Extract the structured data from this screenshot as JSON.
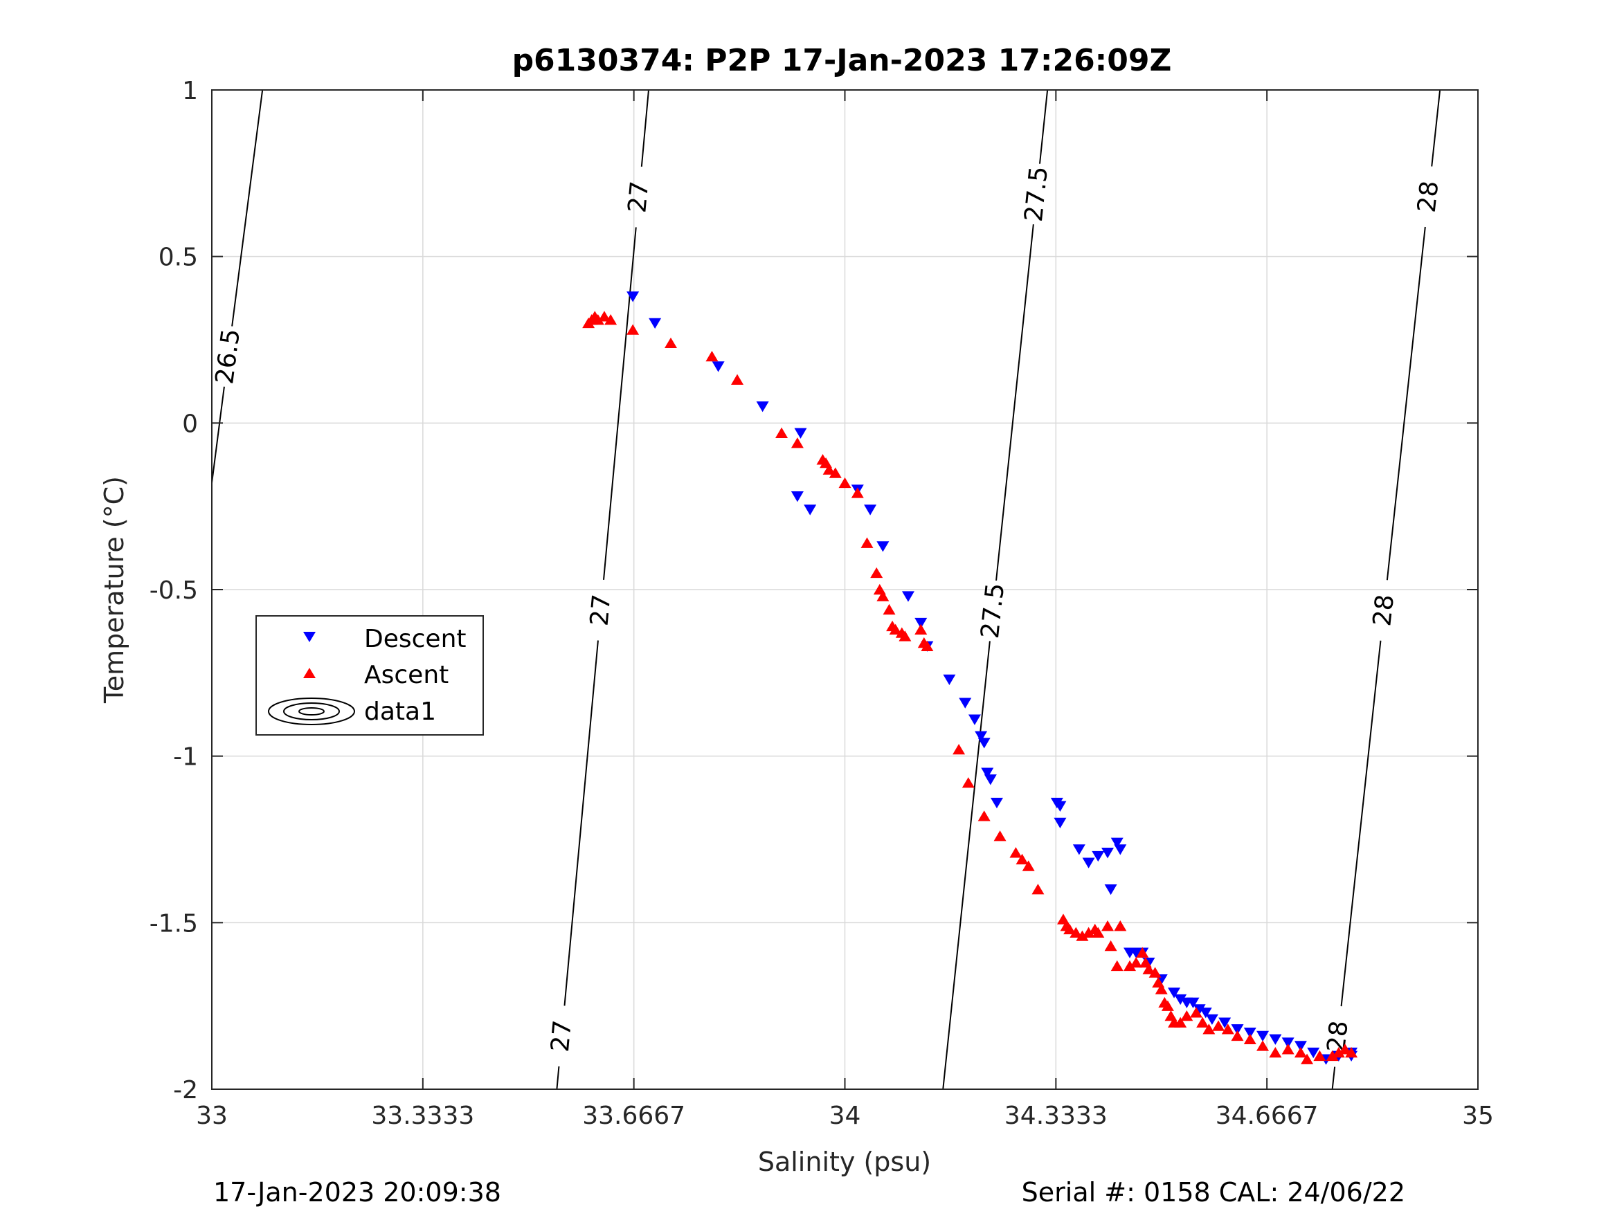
{
  "title": "p6130374: P2P 17-Jan-2023 17:26:09Z",
  "footer_left": "17-Jan-2023 20:09:38",
  "footer_right": "Serial #: 0158  CAL: 24/06/22",
  "chart_data": {
    "type": "scatter",
    "xlabel": "Salinity (psu)",
    "ylabel": "Temperature (°C)",
    "xlim": [
      33,
      35
    ],
    "ylim": [
      -2,
      1
    ],
    "xticks": [
      "33",
      "33.3333",
      "33.6667",
      "34",
      "34.3333",
      "34.6667",
      "35"
    ],
    "yticks": [
      "1",
      "0.5",
      "0",
      "-0.5",
      "-1",
      "-1.5",
      "-2"
    ],
    "grid": true,
    "legend_position": "left",
    "legend": [
      "Descent",
      "Ascent",
      "data1"
    ],
    "colors": {
      "descent": "#0000ff",
      "ascent": "#ff0000",
      "contour": "#000000",
      "grid": "#d9d9d9"
    },
    "contours": [
      {
        "level": "26.5",
        "points": [
          [
            33.0,
            -0.18
          ],
          [
            33.08,
            1.0
          ]
        ],
        "labels": [
          [
            33.025,
            0.2
          ]
        ]
      },
      {
        "level": "27",
        "points": [
          [
            33.545,
            -2.0
          ],
          [
            33.69,
            1.0
          ]
        ],
        "labels": [
          [
            33.55,
            -1.84
          ],
          [
            33.605,
            -0.56
          ],
          [
            33.667,
            0.68
          ]
        ]
      },
      {
        "level": "27.5",
        "points": [
          [
            34.155,
            -2.0
          ],
          [
            34.32,
            1.0
          ]
        ],
        "labels": [
          [
            34.215,
            -0.56
          ],
          [
            34.29,
            0.69
          ]
        ]
      },
      {
        "level": "28",
        "points": [
          [
            34.77,
            -2.0
          ],
          [
            34.94,
            1.0
          ]
        ],
        "labels": [
          [
            34.77,
            -1.84
          ],
          [
            34.84,
            -0.56
          ],
          [
            34.92,
            0.68
          ]
        ]
      }
    ],
    "series": [
      {
        "name": "Descent",
        "marker": "triangle-down",
        "points": [
          [
            33.665,
            0.38
          ],
          [
            33.7,
            0.3
          ],
          [
            33.8,
            0.17
          ],
          [
            33.87,
            0.05
          ],
          [
            33.93,
            -0.03
          ],
          [
            33.925,
            -0.22
          ],
          [
            33.945,
            -0.26
          ],
          [
            34.02,
            -0.2
          ],
          [
            34.04,
            -0.26
          ],
          [
            34.06,
            -0.37
          ],
          [
            34.1,
            -0.52
          ],
          [
            34.12,
            -0.6
          ],
          [
            34.13,
            -0.67
          ],
          [
            34.165,
            -0.77
          ],
          [
            34.19,
            -0.84
          ],
          [
            34.205,
            -0.89
          ],
          [
            34.215,
            -0.94
          ],
          [
            34.22,
            -0.96
          ],
          [
            34.225,
            -1.05
          ],
          [
            34.23,
            -1.07
          ],
          [
            34.24,
            -1.14
          ],
          [
            34.335,
            -1.14
          ],
          [
            34.34,
            -1.15
          ],
          [
            34.34,
            -1.2
          ],
          [
            34.37,
            -1.28
          ],
          [
            34.385,
            -1.32
          ],
          [
            34.4,
            -1.3
          ],
          [
            34.415,
            -1.29
          ],
          [
            34.43,
            -1.26
          ],
          [
            34.435,
            -1.28
          ],
          [
            34.42,
            -1.4
          ],
          [
            34.45,
            -1.59
          ],
          [
            34.46,
            -1.59
          ],
          [
            34.47,
            -1.59
          ],
          [
            34.48,
            -1.62
          ],
          [
            34.5,
            -1.67
          ],
          [
            34.52,
            -1.71
          ],
          [
            34.53,
            -1.73
          ],
          [
            34.54,
            -1.74
          ],
          [
            34.55,
            -1.74
          ],
          [
            34.56,
            -1.76
          ],
          [
            34.57,
            -1.77
          ],
          [
            34.58,
            -1.79
          ],
          [
            34.6,
            -1.8
          ],
          [
            34.62,
            -1.82
          ],
          [
            34.64,
            -1.83
          ],
          [
            34.66,
            -1.84
          ],
          [
            34.68,
            -1.85
          ],
          [
            34.7,
            -1.86
          ],
          [
            34.72,
            -1.87
          ],
          [
            34.74,
            -1.89
          ],
          [
            34.76,
            -1.91
          ],
          [
            34.78,
            -1.9
          ],
          [
            34.8,
            -1.89
          ],
          [
            34.8,
            -1.9
          ]
        ]
      },
      {
        "name": "Ascent",
        "marker": "triangle-up",
        "points": [
          [
            33.595,
            0.3
          ],
          [
            33.6,
            0.31
          ],
          [
            33.605,
            0.32
          ],
          [
            33.61,
            0.31
          ],
          [
            33.62,
            0.32
          ],
          [
            33.63,
            0.31
          ],
          [
            33.665,
            0.28
          ],
          [
            33.725,
            0.24
          ],
          [
            33.79,
            0.2
          ],
          [
            33.83,
            0.13
          ],
          [
            33.9,
            -0.03
          ],
          [
            33.925,
            -0.06
          ],
          [
            33.965,
            -0.11
          ],
          [
            33.97,
            -0.12
          ],
          [
            33.975,
            -0.14
          ],
          [
            33.985,
            -0.15
          ],
          [
            34.0,
            -0.18
          ],
          [
            34.02,
            -0.21
          ],
          [
            34.035,
            -0.36
          ],
          [
            34.05,
            -0.45
          ],
          [
            34.055,
            -0.5
          ],
          [
            34.06,
            -0.52
          ],
          [
            34.07,
            -0.56
          ],
          [
            34.075,
            -0.61
          ],
          [
            34.08,
            -0.62
          ],
          [
            34.09,
            -0.63
          ],
          [
            34.095,
            -0.64
          ],
          [
            34.12,
            -0.62
          ],
          [
            34.125,
            -0.66
          ],
          [
            34.13,
            -0.67
          ],
          [
            34.18,
            -0.98
          ],
          [
            34.195,
            -1.08
          ],
          [
            34.22,
            -1.18
          ],
          [
            34.245,
            -1.24
          ],
          [
            34.27,
            -1.29
          ],
          [
            34.28,
            -1.31
          ],
          [
            34.29,
            -1.33
          ],
          [
            34.305,
            -1.4
          ],
          [
            34.345,
            -1.49
          ],
          [
            34.35,
            -1.51
          ],
          [
            34.355,
            -1.52
          ],
          [
            34.365,
            -1.53
          ],
          [
            34.375,
            -1.54
          ],
          [
            34.385,
            -1.53
          ],
          [
            34.395,
            -1.52
          ],
          [
            34.4,
            -1.53
          ],
          [
            34.415,
            -1.51
          ],
          [
            34.42,
            -1.57
          ],
          [
            34.43,
            -1.63
          ],
          [
            34.435,
            -1.51
          ],
          [
            34.45,
            -1.63
          ],
          [
            34.46,
            -1.62
          ],
          [
            34.47,
            -1.59
          ],
          [
            34.475,
            -1.62
          ],
          [
            34.48,
            -1.64
          ],
          [
            34.49,
            -1.65
          ],
          [
            34.495,
            -1.68
          ],
          [
            34.5,
            -1.7
          ],
          [
            34.505,
            -1.74
          ],
          [
            34.51,
            -1.75
          ],
          [
            34.515,
            -1.78
          ],
          [
            34.52,
            -1.8
          ],
          [
            34.53,
            -1.8
          ],
          [
            34.54,
            -1.78
          ],
          [
            34.555,
            -1.77
          ],
          [
            34.565,
            -1.8
          ],
          [
            34.575,
            -1.82
          ],
          [
            34.59,
            -1.81
          ],
          [
            34.605,
            -1.82
          ],
          [
            34.62,
            -1.84
          ],
          [
            34.64,
            -1.85
          ],
          [
            34.66,
            -1.87
          ],
          [
            34.68,
            -1.89
          ],
          [
            34.7,
            -1.88
          ],
          [
            34.72,
            -1.89
          ],
          [
            34.73,
            -1.91
          ],
          [
            34.75,
            -1.9
          ],
          [
            34.77,
            -1.9
          ],
          [
            34.78,
            -1.89
          ],
          [
            34.79,
            -1.88
          ],
          [
            34.8,
            -1.89
          ]
        ]
      }
    ]
  }
}
